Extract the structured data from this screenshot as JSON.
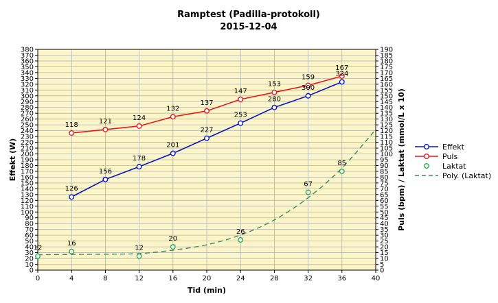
{
  "chart_data": {
    "type": "line",
    "title": "Ramptest (Padilla-protokoll)",
    "subtitle": "2015-12-04",
    "xlabel": "Tid (min)",
    "ylabel_left": "Effekt (W)",
    "ylabel_right": "Puls (bpm) / Laktat (mmol/L x 10)",
    "xlim": [
      0,
      40
    ],
    "x_ticks": [
      0,
      4,
      8,
      12,
      16,
      20,
      24,
      28,
      32,
      36,
      40
    ],
    "ylim_left": [
      0,
      380
    ],
    "y_left_step": 10,
    "ylim_right": [
      0,
      190
    ],
    "y_right_step": 5,
    "grid": true,
    "plot_background": "#fbf5c8",
    "legend_position": "right",
    "series": [
      {
        "name": "Effekt",
        "axis": "left",
        "color": "#0a14c8",
        "style": "line-marker",
        "x": [
          4,
          8,
          12,
          16,
          20,
          24,
          28,
          32,
          36
        ],
        "values": [
          126,
          156,
          178,
          201,
          227,
          253,
          280,
          300,
          324
        ],
        "labels": [
          "126",
          "156",
          "178",
          "201",
          "227",
          "253",
          "280",
          "300",
          "324"
        ]
      },
      {
        "name": "Puls",
        "axis": "right",
        "color": "#e41a1c",
        "style": "line-marker",
        "x": [
          4,
          8,
          12,
          16,
          20,
          24,
          28,
          32,
          36
        ],
        "values": [
          118,
          121,
          124,
          132,
          137,
          147,
          153,
          159,
          167
        ],
        "labels": [
          "118",
          "121",
          "124",
          "132",
          "137",
          "147",
          "153",
          "159",
          "167"
        ]
      },
      {
        "name": "Laktat",
        "axis": "right",
        "color": "#3aaa5c",
        "style": "marker",
        "x": [
          0,
          4,
          12,
          16,
          24,
          32,
          36
        ],
        "values": [
          12,
          16,
          12,
          20,
          26,
          67,
          85
        ],
        "labels": [
          "12",
          "16",
          "12",
          "20",
          "26",
          "67",
          "85"
        ]
      },
      {
        "name": "Poly. (Laktat)",
        "axis": "right",
        "color": "#3a8a5c",
        "style": "dashed",
        "x": [
          0,
          4,
          8,
          12,
          16,
          20,
          24,
          28,
          32,
          36,
          40
        ],
        "values": [
          13.2,
          13.5,
          13.7,
          14.2,
          17.2,
          21.8,
          30.2,
          43.2,
          62.3,
          87.8,
          121
        ]
      }
    ]
  }
}
